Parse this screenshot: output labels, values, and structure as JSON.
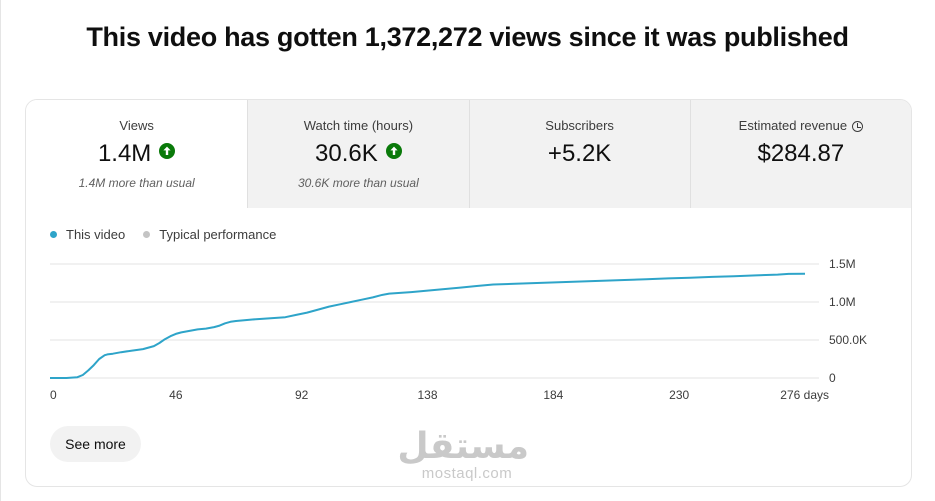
{
  "headline": "This video has gotten 1,372,272 views since it was published",
  "metrics": [
    {
      "label": "Views",
      "value": "1.4M",
      "sub": "1.4M more than usual",
      "icon": "arrow-up-circle-icon"
    },
    {
      "label": "Watch time (hours)",
      "value": "30.6K",
      "sub": "30.6K more than usual",
      "icon": "arrow-up-circle-icon"
    },
    {
      "label": "Subscribers",
      "value": "+5.2K",
      "sub": ""
    },
    {
      "label": "Estimated revenue",
      "value": "$284.87",
      "sub": "",
      "icon": "clock-icon"
    }
  ],
  "legend": [
    {
      "name": "This video",
      "color": "#2ea4c9"
    },
    {
      "name": "Typical performance",
      "color": "#c4c4c4"
    }
  ],
  "see_more_label": "See more",
  "watermark": {
    "logo": "مستقل",
    "url": "mostaql.com"
  },
  "chart_data": {
    "type": "line",
    "xlabel": "",
    "ylabel": "",
    "x_ticks": [
      0,
      46,
      92,
      138,
      184,
      230,
      276
    ],
    "x_tick_labels": [
      "0",
      "46",
      "92",
      "138",
      "184",
      "230",
      "276 days"
    ],
    "y_ticks": [
      0,
      500000,
      1000000,
      1500000
    ],
    "y_tick_labels": [
      "0",
      "500.0K",
      "1.0M",
      "1.5M"
    ],
    "xlim": [
      0,
      276
    ],
    "ylim": [
      0,
      1500000
    ],
    "grid": true,
    "series": [
      {
        "name": "This video",
        "color": "#2ea4c9",
        "x": [
          0,
          6,
          10,
          12,
          14,
          16,
          18,
          20,
          21,
          23,
          26,
          30,
          34,
          38,
          40,
          42,
          44,
          46,
          48,
          51,
          54,
          57,
          60,
          62,
          64,
          66,
          68,
          71,
          74,
          78,
          82,
          86,
          90,
          94,
          98,
          102,
          106,
          110,
          114,
          118,
          121,
          124,
          128,
          132,
          138,
          144,
          150,
          156,
          162,
          170,
          178,
          186,
          194,
          202,
          210,
          218,
          226,
          234,
          242,
          250,
          258,
          266,
          270,
          276
        ],
        "y": [
          0,
          0,
          10000,
          40000,
          100000,
          170000,
          250000,
          300000,
          310000,
          320000,
          340000,
          360000,
          380000,
          420000,
          460000,
          510000,
          550000,
          580000,
          600000,
          620000,
          640000,
          650000,
          670000,
          690000,
          720000,
          740000,
          750000,
          760000,
          770000,
          780000,
          790000,
          800000,
          830000,
          860000,
          900000,
          940000,
          970000,
          1000000,
          1030000,
          1060000,
          1090000,
          1110000,
          1120000,
          1130000,
          1150000,
          1170000,
          1190000,
          1210000,
          1230000,
          1240000,
          1250000,
          1260000,
          1270000,
          1280000,
          1290000,
          1300000,
          1310000,
          1320000,
          1330000,
          1340000,
          1350000,
          1360000,
          1370000,
          1372272
        ]
      }
    ]
  }
}
